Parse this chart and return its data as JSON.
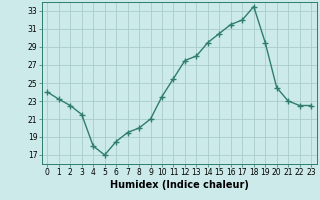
{
  "x": [
    0,
    1,
    2,
    3,
    4,
    5,
    6,
    7,
    8,
    9,
    10,
    11,
    12,
    13,
    14,
    15,
    16,
    17,
    18,
    19,
    20,
    21,
    22,
    23
  ],
  "y": [
    24.0,
    23.2,
    22.5,
    21.5,
    18.0,
    17.0,
    18.5,
    19.5,
    20.0,
    21.0,
    23.5,
    25.5,
    27.5,
    28.0,
    29.5,
    30.5,
    31.5,
    32.0,
    33.5,
    29.5,
    24.5,
    23.0,
    22.5,
    22.5
  ],
  "xlabel": "Humidex (Indice chaleur)",
  "xlim": [
    -0.5,
    23.5
  ],
  "ylim": [
    16,
    34
  ],
  "yticks": [
    17,
    19,
    21,
    23,
    25,
    27,
    29,
    31,
    33
  ],
  "xticks": [
    0,
    1,
    2,
    3,
    4,
    5,
    6,
    7,
    8,
    9,
    10,
    11,
    12,
    13,
    14,
    15,
    16,
    17,
    18,
    19,
    20,
    21,
    22,
    23
  ],
  "line_color": "#2e7d6e",
  "marker": "+",
  "bg_color": "#cdeaea",
  "grid_color": "#a8cccc",
  "tick_label_fontsize": 5.5,
  "xlabel_fontsize": 7,
  "line_width": 1.0,
  "marker_size": 4,
  "marker_edge_width": 1.0
}
